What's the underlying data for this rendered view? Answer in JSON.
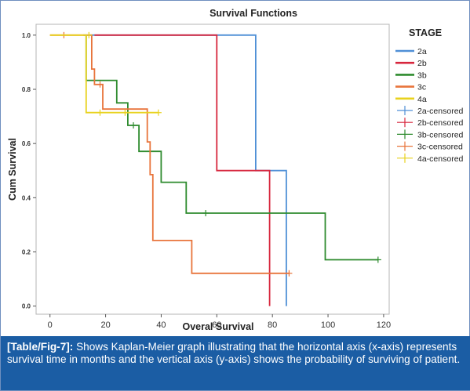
{
  "chart_data": {
    "type": "line",
    "title": "Survival Functions",
    "xlabel": "Overal Survival",
    "ylabel": "Cum Survival",
    "xlim": [
      -5,
      122
    ],
    "ylim": [
      -0.03,
      1.04
    ],
    "x_ticks": [
      0,
      20,
      40,
      60,
      80,
      100,
      120
    ],
    "y_ticks": [
      0.0,
      0.2,
      0.4,
      0.6,
      0.8,
      1.0
    ],
    "y_tick_labels": [
      "0.0",
      "0.2",
      "0.4",
      "0.6",
      "0.8",
      "1.0"
    ],
    "grid": false,
    "legend_title": "STAGE",
    "legend_position": "right",
    "legend_entries": [
      "2a",
      "2b",
      "3b",
      "3c",
      "4a",
      "2a-censored",
      "2b-censored",
      "3b-censored",
      "3c-censored",
      "4a-censored"
    ],
    "series": [
      {
        "name": "2a",
        "color": "#4f8fd6",
        "points": [
          [
            12,
            1.0
          ],
          [
            74,
            1.0
          ],
          [
            74,
            0.5
          ],
          [
            85,
            0.5
          ],
          [
            85,
            0.0
          ]
        ],
        "censored": []
      },
      {
        "name": "2b",
        "color": "#d7263d",
        "points": [
          [
            16,
            1.0
          ],
          [
            60,
            1.0
          ],
          [
            60,
            0.5
          ],
          [
            79,
            0.5
          ],
          [
            79,
            0.0
          ]
        ],
        "censored": []
      },
      {
        "name": "3b",
        "color": "#2e8b2e",
        "points": [
          [
            13,
            1.0
          ],
          [
            13,
            0.833
          ],
          [
            24,
            0.833
          ],
          [
            24,
            0.75
          ],
          [
            28,
            0.75
          ],
          [
            28,
            0.667
          ],
          [
            32,
            0.667
          ],
          [
            32,
            0.571
          ],
          [
            40,
            0.571
          ],
          [
            40,
            0.457
          ],
          [
            49,
            0.457
          ],
          [
            49,
            0.343
          ],
          [
            99,
            0.343
          ],
          [
            99,
            0.171
          ],
          [
            118,
            0.171
          ]
        ],
        "censored": [
          [
            30,
            0.667
          ],
          [
            56,
            0.343
          ],
          [
            118,
            0.171
          ]
        ]
      },
      {
        "name": "3c",
        "color": "#e8743b",
        "points": [
          [
            0,
            1.0
          ],
          [
            15,
            1.0
          ],
          [
            15,
            0.875
          ],
          [
            16,
            0.875
          ],
          [
            16,
            0.818
          ],
          [
            19,
            0.818
          ],
          [
            19,
            0.727
          ],
          [
            35,
            0.727
          ],
          [
            35,
            0.606
          ],
          [
            36,
            0.606
          ],
          [
            36,
            0.485
          ],
          [
            37,
            0.485
          ],
          [
            37,
            0.242
          ],
          [
            51,
            0.242
          ],
          [
            51,
            0.121
          ],
          [
            86,
            0.121
          ]
        ],
        "censored": [
          [
            5,
            1.0
          ],
          [
            18,
            0.818
          ],
          [
            86,
            0.121
          ]
        ]
      },
      {
        "name": "4a",
        "color": "#e8d21e",
        "points": [
          [
            0,
            1.0
          ],
          [
            13,
            1.0
          ],
          [
            13,
            0.714
          ],
          [
            39,
            0.714
          ]
        ],
        "censored": [
          [
            14,
            1.0
          ],
          [
            18,
            0.714
          ],
          [
            27,
            0.714
          ],
          [
            39,
            0.714
          ]
        ]
      }
    ]
  },
  "caption": {
    "label": "[Table/Fig-7]:",
    "text": " Shows Kaplan-Meier graph illustrating that the horizontal axis (x-axis) represents survival time in months and the vertical axis (y-axis) shows the probability of surviving of patient."
  }
}
